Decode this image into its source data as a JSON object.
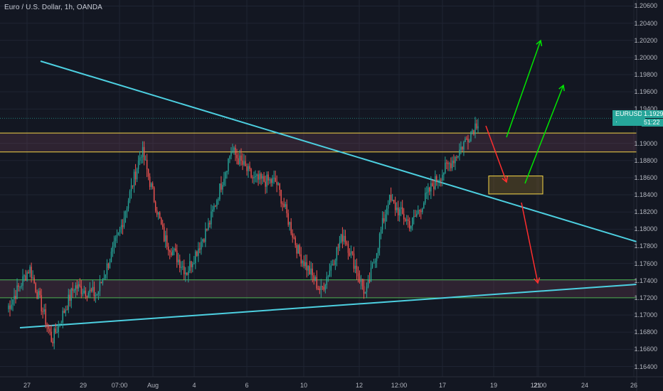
{
  "chart_title": "Euro / U.S. Dollar, 1h, OANDA",
  "price_axis": {
    "labels": [
      "1.20600",
      "1.20400",
      "1.20200",
      "1.20000",
      "1.19800",
      "1.19600",
      "1.19400",
      "1.19000",
      "1.18800",
      "1.18600",
      "1.18400",
      "1.18200",
      "1.18000",
      "1.17800",
      "1.17600",
      "1.17400",
      "1.17200",
      "1.17000",
      "1.16800",
      "1.16600",
      "1.16400"
    ],
    "values": [
      1.206,
      1.204,
      1.202,
      1.2,
      1.198,
      1.196,
      1.194,
      1.19,
      1.188,
      1.186,
      1.184,
      1.182,
      1.18,
      1.178,
      1.176,
      1.174,
      1.172,
      1.17,
      1.168,
      1.166,
      1.164
    ]
  },
  "time_axis": {
    "labels": [
      "27",
      "29",
      "07:00",
      "Aug",
      "4",
      "6",
      "10",
      "12",
      "12:00",
      "17",
      "19",
      "21",
      "12:00",
      "24",
      "26"
    ]
  },
  "current_price": {
    "symbol": "EURUSD",
    "price": "1.19292",
    "countdown": "51:22",
    "value": 1.19292,
    "color": "#26a69a"
  },
  "chart_data": {
    "type": "candlestick",
    "xlabel": "",
    "ylabel": "",
    "ylim": [
      1.1628,
      1.2067
    ],
    "grid": true,
    "key_levels": {
      "resistance_zone": [
        1.189,
        1.1912
      ],
      "target_box": [
        1.1841,
        1.1862
      ],
      "support_zone": [
        1.172,
        1.1741
      ]
    },
    "path_points": [
      [
        1.172,
        1.1694
      ],
      [
        1.178,
        1.173
      ],
      [
        1.164,
        1.17
      ],
      [
        1.1755,
        1.1712
      ],
      [
        1.1735,
        1.1712
      ],
      [
        1.182,
        1.177
      ],
      [
        1.1905,
        1.188
      ],
      [
        1.18,
        1.178
      ],
      [
        1.1755,
        1.1745
      ],
      [
        1.183,
        1.178
      ],
      [
        1.1905,
        1.188
      ],
      [
        1.1865,
        1.185
      ],
      [
        1.188,
        1.183
      ],
      [
        1.179,
        1.1755
      ],
      [
        1.173,
        1.1725
      ],
      [
        1.179,
        1.18
      ],
      [
        1.172,
        1.1725
      ],
      [
        1.184,
        1.183
      ],
      [
        1.182,
        1.179
      ],
      [
        1.1855,
        1.185
      ],
      [
        1.188,
        1.189
      ],
      [
        1.1925,
        1.1928
      ]
    ],
    "projection_lines": [
      {
        "from": [
          1.1905,
          1.1904
        ],
        "to": [
          1.2018,
          1.2019
        ],
        "color": "#00e600"
      },
      {
        "from": [
          1.1848,
          1.1852
        ],
        "to": [
          1.1962,
          1.1967
        ],
        "color": "#00e600"
      },
      {
        "from": [
          1.1918,
          1.1919
        ],
        "to": [
          1.185,
          1.1847
        ],
        "color": "#ff2e2e"
      },
      {
        "from": [
          1.1831,
          1.1833
        ],
        "to": [
          1.1736,
          1.1731
        ],
        "color": "#ff2e2e"
      }
    ]
  },
  "colors": {
    "background": "#131722",
    "up": "#26a69a",
    "down": "#ef5350",
    "trendline": "#4dd0e1",
    "resistance_line": "#f5d547",
    "support_line": "#4caf50"
  }
}
